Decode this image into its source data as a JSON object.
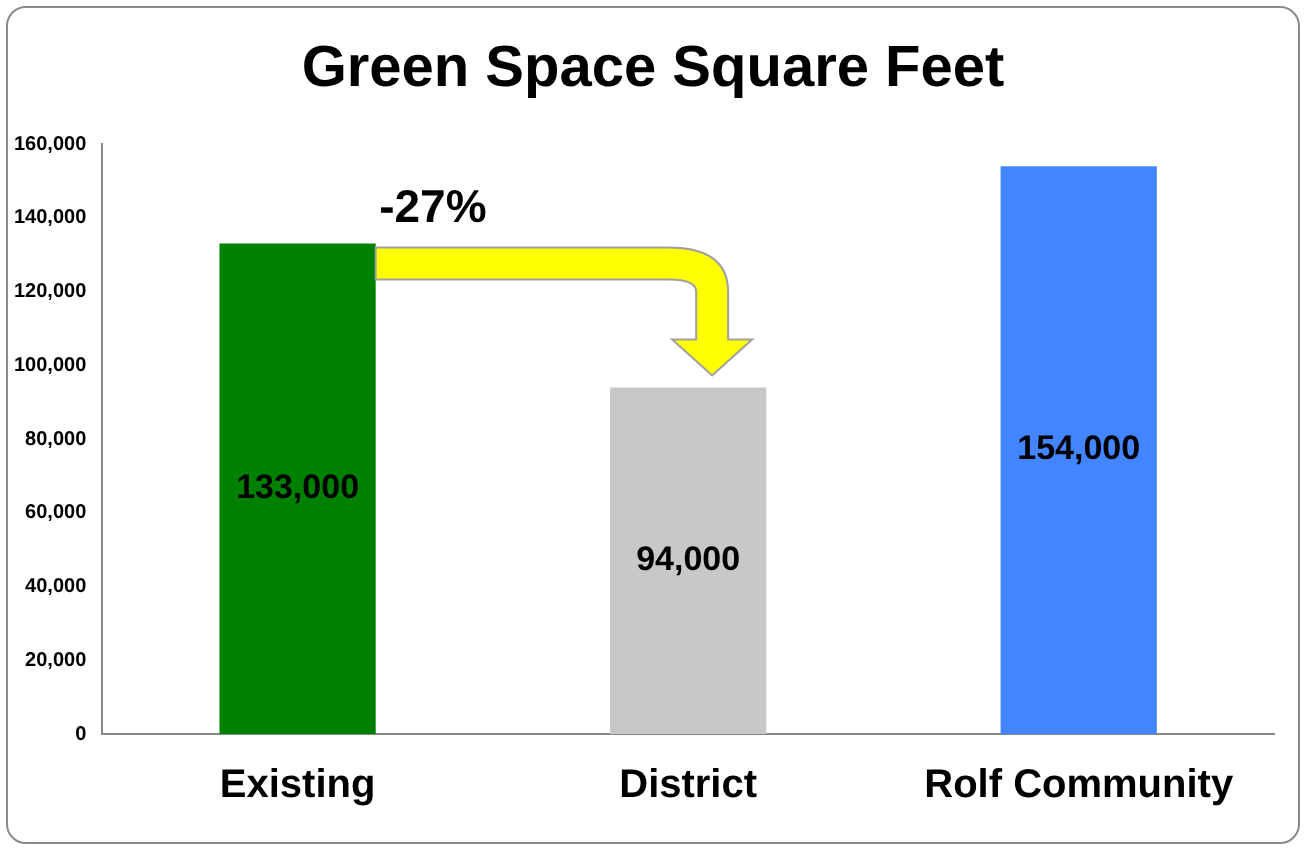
{
  "chart_data": {
    "type": "bar",
    "title": "Green Space Square Feet",
    "categories": [
      "Existing",
      "District",
      "Rolf Community"
    ],
    "values": [
      133000,
      94000,
      154000
    ],
    "value_labels": [
      "133,000",
      "94,000",
      "154,000"
    ],
    "colors": [
      "#008000",
      "#c8c8c8",
      "#4285ff"
    ],
    "ylim": [
      0,
      160000
    ],
    "yticks": [
      0,
      {
        "value": 20000,
        "label": "20,000"
      },
      {
        "value": 40000,
        "label": "40,000"
      },
      {
        "value": 60000,
        "label": "60,000"
      },
      {
        "value": 80000,
        "label": "80,000"
      },
      {
        "value": 100000,
        "label": "100,000"
      },
      {
        "value": 120000,
        "label": "120,000"
      },
      {
        "value": 140000,
        "label": "140,000"
      },
      {
        "value": 160000,
        "label": "160,000"
      }
    ],
    "grid": false,
    "legend": false,
    "annotations": [
      "-27%"
    ]
  }
}
